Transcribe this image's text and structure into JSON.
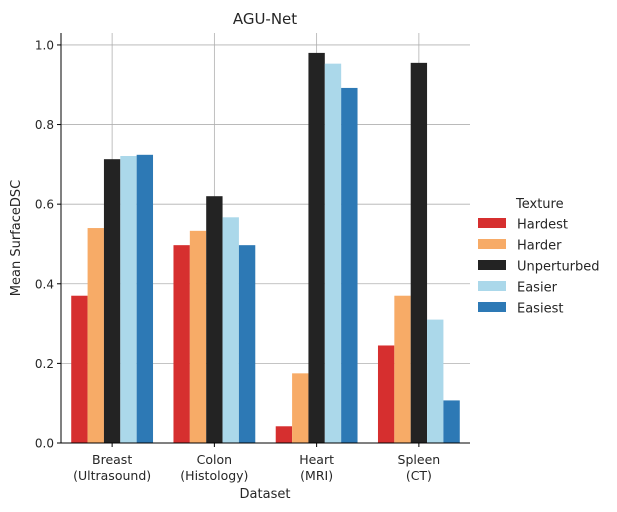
{
  "chart_data": {
    "type": "bar",
    "title": "AGU-Net",
    "xlabel": "Dataset",
    "ylabel": "Mean SurfaceDSC",
    "categories": [
      "Breast\n(Ultrasound)",
      "Colon\n(Histology)",
      "Heart\n(MRI)",
      "Spleen\n(CT)"
    ],
    "ylim": [
      0,
      1.03
    ],
    "yticks": [
      "0.0",
      "0.2",
      "0.4",
      "0.6",
      "0.8",
      "1.0"
    ],
    "grid": true,
    "legend": {
      "title": "Texture",
      "placement": "right"
    },
    "series": [
      {
        "name": "Hardest",
        "color": "#d62f2f",
        "values": [
          0.37,
          0.497,
          0.042,
          0.245
        ]
      },
      {
        "name": "Harder",
        "color": "#f7ab67",
        "values": [
          0.54,
          0.533,
          0.175,
          0.37
        ]
      },
      {
        "name": "Unperturbed",
        "color": "#232323",
        "values": [
          0.713,
          0.62,
          0.98,
          0.955
        ]
      },
      {
        "name": "Easier",
        "color": "#abd8ea",
        "values": [
          0.721,
          0.567,
          0.953,
          0.31
        ]
      },
      {
        "name": "Easiest",
        "color": "#2d79b5",
        "values": [
          0.724,
          0.497,
          0.892,
          0.107
        ]
      }
    ]
  }
}
